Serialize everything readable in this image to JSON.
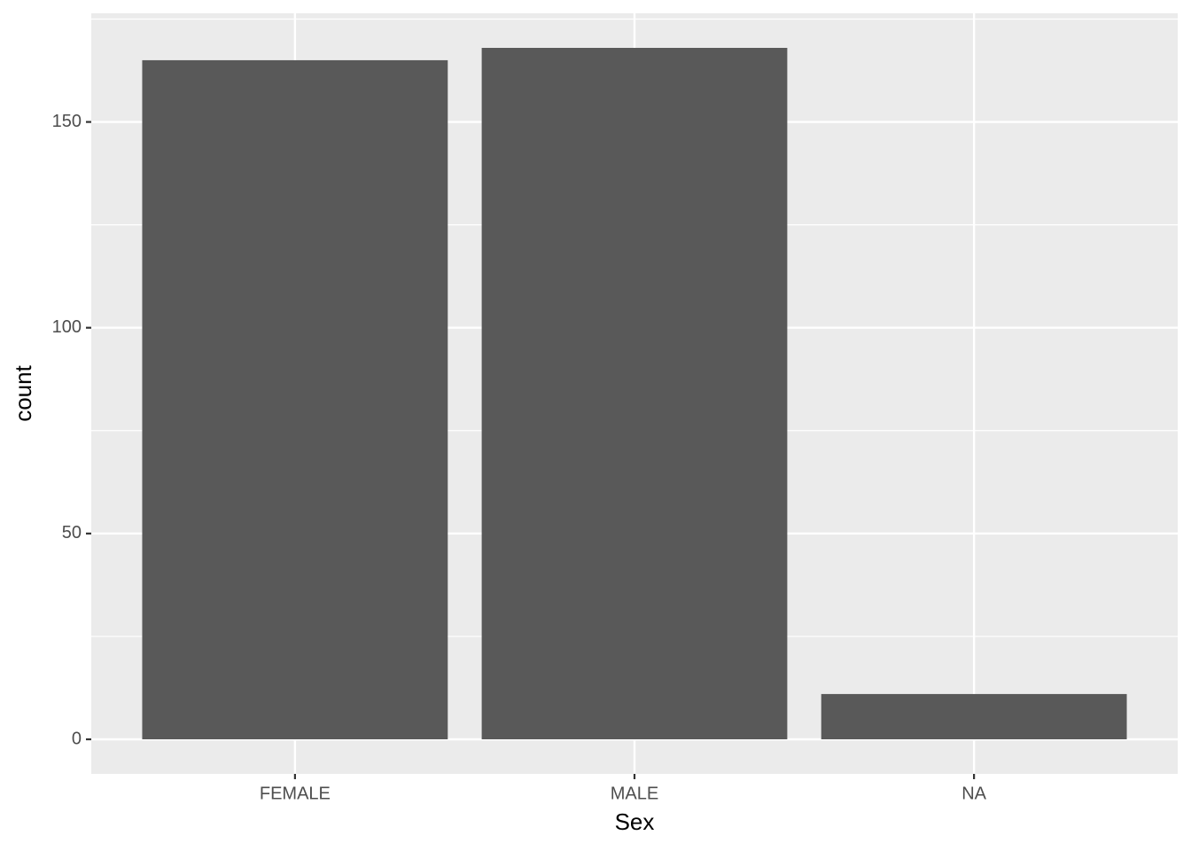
{
  "chart_data": {
    "type": "bar",
    "x_label": "Sex",
    "y_label": "count",
    "categories": [
      "FEMALE",
      "MALE",
      "NA"
    ],
    "values": [
      165,
      168,
      11
    ],
    "color": "#595959",
    "ylim": [
      -8.4,
      176.4
    ],
    "yticks": [
      0,
      50,
      100,
      150
    ],
    "minor_yticks": [
      25,
      75,
      125,
      175
    ],
    "grid": true
  }
}
